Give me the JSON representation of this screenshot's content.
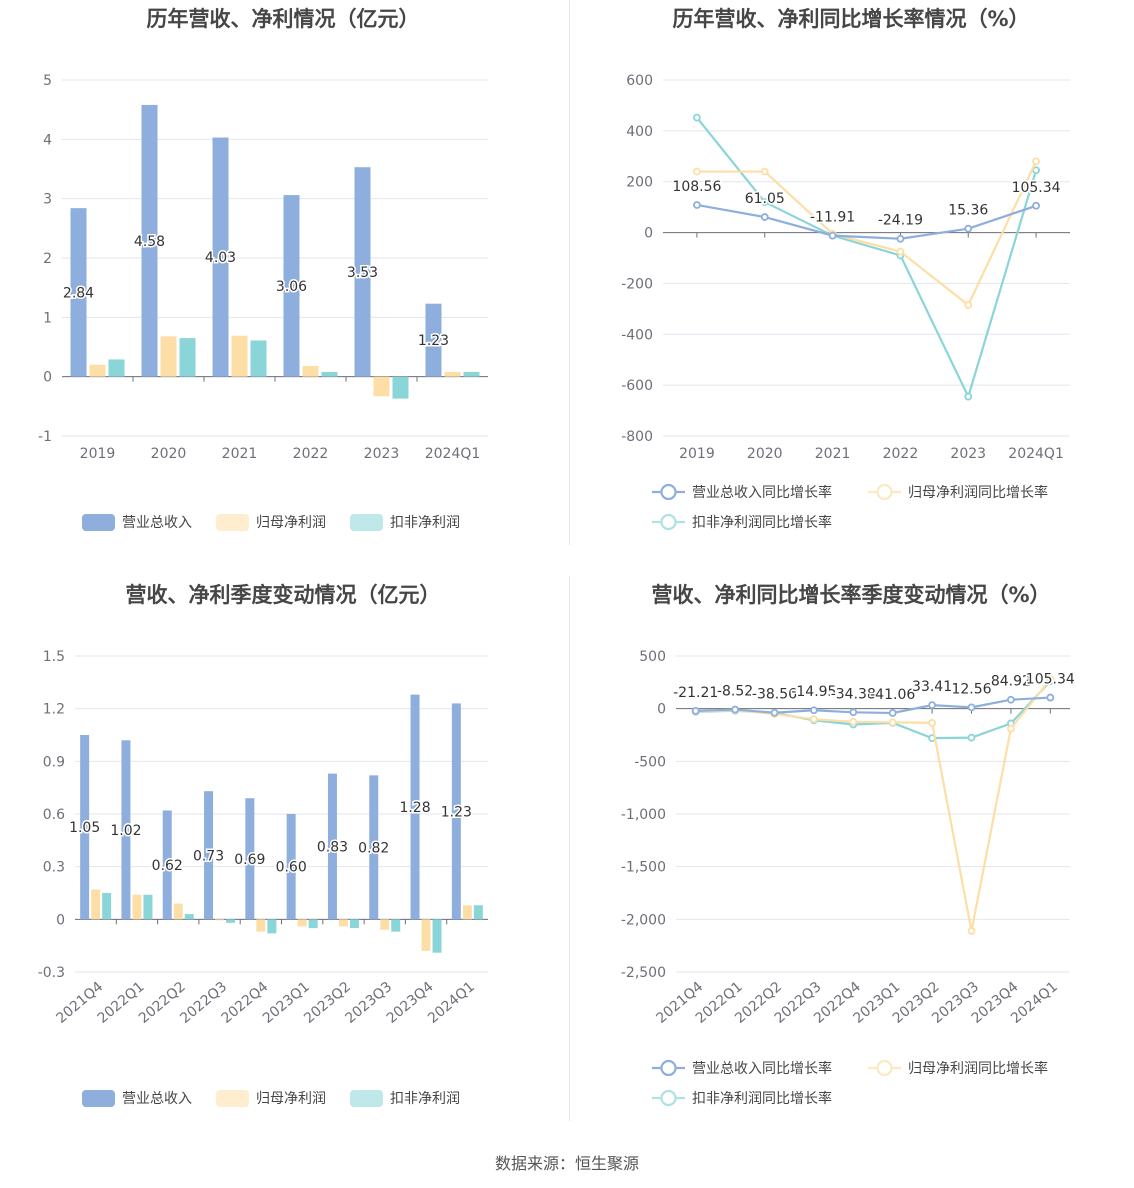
{
  "source": "数据来源：恒生聚源",
  "colors": {
    "revenue": "#8eaedd",
    "net_profit": "#fddea6",
    "deducted": "#8ad5d8"
  },
  "chart_data": [
    {
      "id": "annual-amount",
      "type": "bar",
      "title": "历年营收、净利情况（亿元）",
      "categories": [
        "2019",
        "2020",
        "2021",
        "2022",
        "2023",
        "2024Q1"
      ],
      "ylim": [
        -1,
        5
      ],
      "yticks": [
        "-1",
        "0",
        "1",
        "2",
        "3",
        "4",
        "5"
      ],
      "series": [
        {
          "name": "营业总收入",
          "color": "#8eaedd",
          "values": [
            2.84,
            4.58,
            4.03,
            3.06,
            3.53,
            1.23
          ]
        },
        {
          "name": "归母净利润",
          "color": "#fddea6",
          "values": [
            0.2,
            0.68,
            0.69,
            0.18,
            -0.33,
            0.08
          ]
        },
        {
          "name": "扣非净利润",
          "color": "#8ad5d8",
          "values": [
            0.29,
            0.65,
            0.61,
            0.08,
            -0.37,
            0.08
          ]
        }
      ],
      "data_labels": [
        "2.84",
        "4.58",
        "4.03",
        "3.06",
        "3.53",
        "1.23"
      ]
    },
    {
      "id": "annual-growth",
      "type": "line",
      "title": "历年营收、净利同比增长率情况（%）",
      "categories": [
        "2019",
        "2020",
        "2021",
        "2022",
        "2023",
        "2024Q1"
      ],
      "ylim": [
        -800,
        600
      ],
      "yticks": [
        "-800",
        "-600",
        "-400",
        "-200",
        "0",
        "200",
        "400",
        "600"
      ],
      "series": [
        {
          "name": "营业总收入同比增长率",
          "color": "#8eaedd",
          "values": [
            108.56,
            61.05,
            -11.91,
            -24.19,
            15.36,
            105.34
          ]
        },
        {
          "name": "归母净利润同比增长率",
          "color": "#fddea6",
          "values": [
            240,
            240,
            -5,
            -75,
            -285,
            280
          ]
        },
        {
          "name": "扣非净利润同比增长率",
          "color": "#8ad5d8",
          "values": [
            452,
            120,
            -12,
            -90,
            -645,
            245
          ]
        }
      ],
      "data_labels": [
        "108.56",
        "61.05",
        "-11.91",
        "-24.19",
        "15.36",
        "105.34"
      ]
    },
    {
      "id": "quarterly-amount",
      "type": "bar",
      "title": "营收、净利季度变动情况（亿元）",
      "categories": [
        "2021Q4",
        "2022Q1",
        "2022Q2",
        "2022Q3",
        "2022Q4",
        "2023Q1",
        "2023Q2",
        "2023Q3",
        "2023Q4",
        "2024Q1"
      ],
      "ylim": [
        -0.3,
        1.5
      ],
      "yticks": [
        "-0.3",
        "0",
        "0.3",
        "0.6",
        "0.9",
        "1.2",
        "1.5"
      ],
      "series": [
        {
          "name": "营业总收入",
          "color": "#8eaedd",
          "values": [
            1.05,
            1.02,
            0.62,
            0.73,
            0.69,
            0.6,
            0.83,
            0.82,
            1.28,
            1.23
          ]
        },
        {
          "name": "归母净利润",
          "color": "#fddea6",
          "values": [
            0.17,
            0.14,
            0.09,
            -0.005,
            -0.07,
            -0.04,
            -0.04,
            -0.06,
            -0.18,
            0.08
          ]
        },
        {
          "name": "扣非净利润",
          "color": "#8ad5d8",
          "values": [
            0.15,
            0.14,
            0.03,
            -0.02,
            -0.08,
            -0.05,
            -0.05,
            -0.07,
            -0.19,
            0.08
          ]
        }
      ],
      "data_labels": [
        "1.05",
        "1.02",
        "0.62",
        "0.73",
        "0.69",
        "0.60",
        "0.83",
        "0.82",
        "1.28",
        "1.23"
      ]
    },
    {
      "id": "quarterly-growth",
      "type": "line",
      "title": "营收、净利同比增长率季度变动情况（%）",
      "categories": [
        "2021Q4",
        "2022Q1",
        "2022Q2",
        "2022Q3",
        "2022Q4",
        "2023Q1",
        "2023Q2",
        "2023Q3",
        "2023Q4",
        "2024Q1"
      ],
      "ylim": [
        -2500,
        500
      ],
      "yticks": [
        "-2,500",
        "-2,000",
        "-1,500",
        "-1,000",
        "-500",
        "0",
        "500"
      ],
      "series": [
        {
          "name": "营业总收入同比增长率",
          "color": "#8eaedd",
          "values": [
            -21.21,
            -8.52,
            -38.56,
            -14.95,
            -34.38,
            -41.06,
            33.41,
            12.56,
            84.92,
            105.34
          ]
        },
        {
          "name": "归母净利润同比增长率",
          "color": "#fddea6",
          "values": [
            -25,
            -15,
            -50,
            -100,
            -125,
            -130,
            -135,
            -2110,
            -190,
            280
          ]
        },
        {
          "name": "扣非净利润同比增长率",
          "color": "#8ad5d8",
          "values": [
            -30,
            -20,
            -40,
            -110,
            -150,
            -135,
            -280,
            -275,
            -140,
            260
          ]
        }
      ],
      "data_labels": [
        "-21.21",
        "-8.52",
        "-38.56",
        "-14.95",
        "-34.38",
        "-41.06",
        "33.41",
        "12.56",
        "84.92",
        "105.34"
      ]
    }
  ]
}
